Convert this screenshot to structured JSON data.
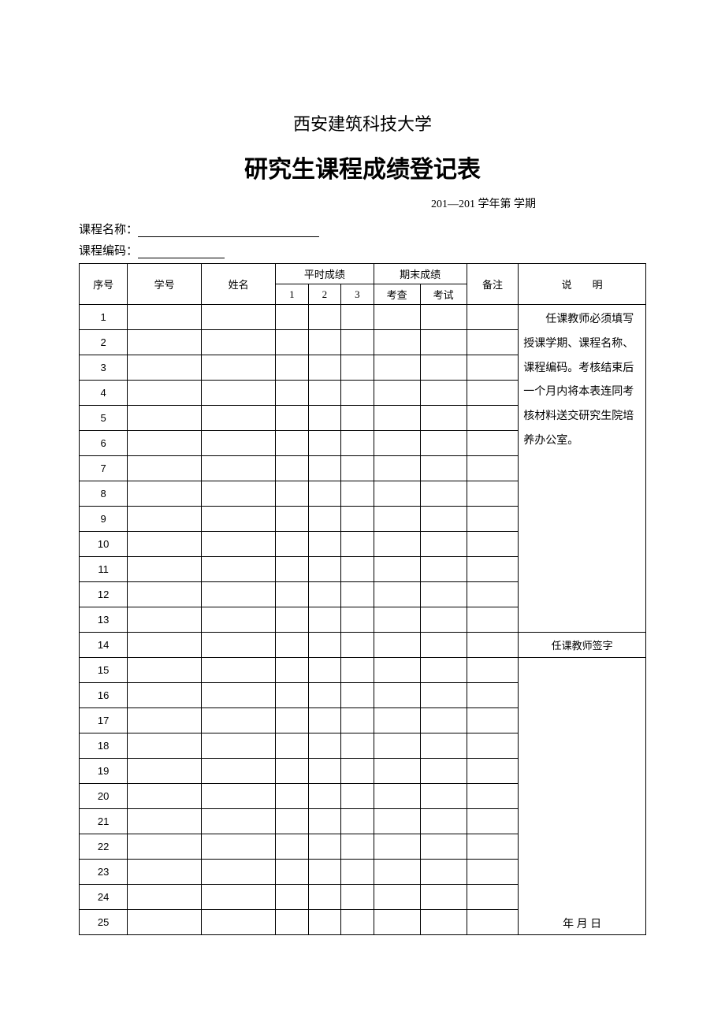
{
  "university": "西安建筑科技大学",
  "title": "研究生课程成绩登记表",
  "semester": "201—201 学年第 学期",
  "course_name_label": "课程名称：",
  "course_code_label": "课程编码：",
  "headers": {
    "seq": "序号",
    "sid": "学号",
    "name": "姓名",
    "regular": "平时成绩",
    "p1": "1",
    "p2": "2",
    "p3": "3",
    "final": "期末成绩",
    "check": "考查",
    "exam": "考试",
    "note": "备注",
    "desc": "说明"
  },
  "note_text": "任课教师必须填写授课学期、课程名称、课程编码。考核结束后一个月内将本表连同考核材料送交研究生院培养办公室。",
  "signature_label": "任课教师签字",
  "date_label": "年 月 日",
  "row_count": 25
}
